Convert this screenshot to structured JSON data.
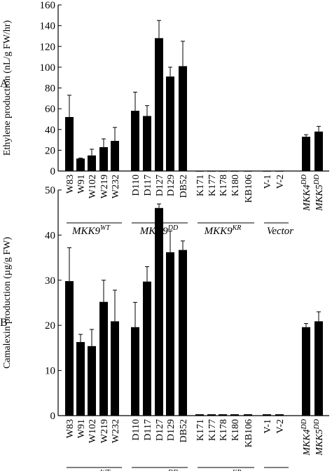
{
  "panel_letters": [
    "A",
    "B"
  ],
  "group_labels": [
    {
      "base": "MKK9",
      "sup": "WT"
    },
    {
      "base": "MKK9",
      "sup": "DD"
    },
    {
      "base": "MKK9",
      "sup": "KR"
    },
    {
      "base": "Vector",
      "sup": ""
    }
  ],
  "chart_data": [
    {
      "type": "bar",
      "panel": "A",
      "ylabel": "Ethylene production (nL/g FW/hr)",
      "ylim": [
        0,
        160
      ],
      "yticks": [
        0,
        20,
        40,
        60,
        80,
        100,
        120,
        140,
        160
      ],
      "categories": [
        {
          "name": "W83",
          "sup": ""
        },
        {
          "name": "W91",
          "sup": ""
        },
        {
          "name": "W102",
          "sup": ""
        },
        {
          "name": "W219",
          "sup": ""
        },
        {
          "name": "W232",
          "sup": ""
        },
        {
          "name": "D110",
          "sup": ""
        },
        {
          "name": "D117",
          "sup": ""
        },
        {
          "name": "D127",
          "sup": ""
        },
        {
          "name": "D129",
          "sup": ""
        },
        {
          "name": "DB52",
          "sup": ""
        },
        {
          "name": "K171",
          "sup": ""
        },
        {
          "name": "K177",
          "sup": ""
        },
        {
          "name": "K178",
          "sup": ""
        },
        {
          "name": "K180",
          "sup": ""
        },
        {
          "name": "KB106",
          "sup": ""
        },
        {
          "name": "V-1",
          "sup": ""
        },
        {
          "name": "V-2",
          "sup": ""
        },
        {
          "name": "MKK4",
          "sup": "DD"
        },
        {
          "name": "MKK5",
          "sup": "DD"
        }
      ],
      "values": [
        52,
        12,
        15,
        23,
        29,
        58,
        53,
        128,
        91,
        101,
        0,
        0,
        0,
        0,
        0,
        0,
        0,
        33,
        38
      ],
      "errors": [
        21,
        0.5,
        6,
        8,
        13,
        18,
        10,
        17,
        9,
        24,
        0,
        0,
        0,
        0,
        0,
        0,
        0,
        2,
        5
      ]
    },
    {
      "type": "bar",
      "panel": "B",
      "ylabel": "Camalexin production (µg/g FW)",
      "ylim": [
        0,
        50
      ],
      "yticks": [
        0,
        10,
        20,
        30,
        40,
        50
      ],
      "categories": [
        {
          "name": "W83",
          "sup": ""
        },
        {
          "name": "W91",
          "sup": ""
        },
        {
          "name": "W102",
          "sup": ""
        },
        {
          "name": "W219",
          "sup": ""
        },
        {
          "name": "W232",
          "sup": ""
        },
        {
          "name": "D110",
          "sup": ""
        },
        {
          "name": "D117",
          "sup": ""
        },
        {
          "name": "D127",
          "sup": ""
        },
        {
          "name": "D129",
          "sup": ""
        },
        {
          "name": "DB52",
          "sup": ""
        },
        {
          "name": "K171",
          "sup": ""
        },
        {
          "name": "K177",
          "sup": ""
        },
        {
          "name": "K178",
          "sup": ""
        },
        {
          "name": "K180",
          "sup": ""
        },
        {
          "name": "KB106",
          "sup": ""
        },
        {
          "name": "V-1",
          "sup": ""
        },
        {
          "name": "V-2",
          "sup": ""
        },
        {
          "name": "MKK4",
          "sup": "DD"
        },
        {
          "name": "MKK5",
          "sup": "DD"
        }
      ],
      "values": [
        29.8,
        16.3,
        15.4,
        25.2,
        20.9,
        19.6,
        29.7,
        46.0,
        36.2,
        36.7,
        0.3,
        0.3,
        0.3,
        0.3,
        0.3,
        0.3,
        0.3,
        19.6,
        20.9
      ],
      "errors": [
        7.4,
        1.7,
        3.7,
        4.8,
        6.9,
        5.5,
        3.3,
        0.9,
        4.7,
        2.0,
        0,
        0,
        0,
        0,
        0,
        0,
        0,
        0.8,
        2.1
      ]
    }
  ]
}
